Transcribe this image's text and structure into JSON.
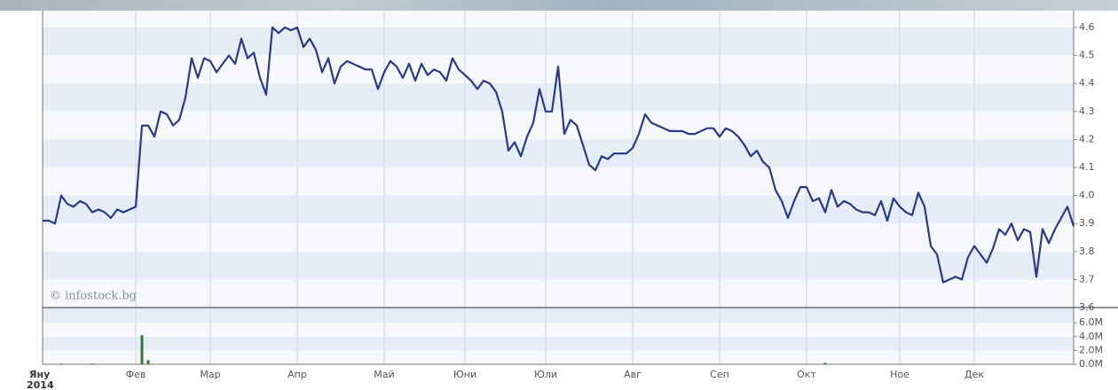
{
  "chart_data": [
    {
      "type": "line",
      "color": "#2a3a8a",
      "watermark": "© infostock.bg",
      "year_label": "2014",
      "categories": [
        "Яну",
        null,
        null,
        null,
        null,
        null,
        null,
        null,
        null,
        null,
        null,
        null,
        null,
        null,
        null,
        "Фев",
        null,
        null,
        null,
        null,
        null,
        null,
        null,
        null,
        null,
        null,
        null,
        "Мар",
        null,
        null,
        null,
        null,
        null,
        null,
        null,
        null,
        null,
        null,
        null,
        null,
        null,
        "Апр",
        null,
        null,
        null,
        null,
        null,
        null,
        null,
        null,
        null,
        null,
        null,
        null,
        null,
        "Май",
        null,
        null,
        null,
        null,
        null,
        null,
        null,
        null,
        null,
        null,
        null,
        null,
        "Юни",
        null,
        null,
        null,
        null,
        null,
        null,
        null,
        null,
        null,
        null,
        null,
        null,
        "Юли",
        null,
        null,
        null,
        null,
        null,
        null,
        null,
        null,
        null,
        null,
        null,
        null,
        null,
        "Авг",
        null,
        null,
        null,
        null,
        null,
        null,
        null,
        null,
        null,
        null,
        null,
        null,
        null,
        "Сеп",
        null,
        null,
        null,
        null,
        null,
        null,
        null,
        null,
        null,
        null,
        null,
        null,
        null,
        "Окт",
        null,
        null,
        null,
        null,
        null,
        null,
        null,
        null,
        null,
        null,
        null,
        null,
        null,
        null,
        "Ное",
        null,
        null,
        null,
        null,
        null,
        null,
        null,
        null,
        null,
        null,
        null,
        "Дек",
        null,
        null,
        null,
        null,
        null,
        null,
        null,
        null,
        null,
        null,
        null,
        null,
        null,
        null,
        null,
        null
      ],
      "values": [
        3.91,
        3.91,
        3.9,
        4.0,
        3.97,
        3.96,
        3.98,
        3.97,
        3.94,
        3.95,
        3.94,
        3.92,
        3.95,
        3.94,
        3.95,
        3.96,
        4.25,
        4.25,
        4.21,
        4.3,
        4.29,
        4.25,
        4.27,
        4.35,
        4.49,
        4.42,
        4.49,
        4.48,
        4.44,
        4.47,
        4.5,
        4.47,
        4.56,
        4.49,
        4.51,
        4.42,
        4.36,
        4.6,
        4.58,
        4.6,
        4.59,
        4.6,
        4.53,
        4.56,
        4.52,
        4.44,
        4.49,
        4.4,
        4.46,
        4.48,
        4.47,
        4.46,
        4.45,
        4.45,
        4.38,
        4.44,
        4.48,
        4.46,
        4.42,
        4.47,
        4.41,
        4.47,
        4.43,
        4.45,
        4.44,
        4.41,
        4.49,
        4.45,
        4.43,
        4.41,
        4.38,
        4.41,
        4.4,
        4.37,
        4.3,
        4.16,
        4.19,
        4.14,
        4.21,
        4.26,
        4.38,
        4.3,
        4.3,
        4.46,
        4.22,
        4.27,
        4.25,
        4.18,
        4.11,
        4.09,
        4.14,
        4.13,
        4.15,
        4.15,
        4.15,
        4.17,
        4.22,
        4.29,
        4.26,
        4.25,
        4.24,
        4.23,
        4.23,
        4.23,
        4.22,
        4.22,
        4.23,
        4.24,
        4.24,
        4.21,
        4.24,
        4.23,
        4.21,
        4.18,
        4.14,
        4.16,
        4.12,
        4.1,
        4.02,
        3.98,
        3.92,
        3.98,
        4.03,
        4.03,
        3.98,
        3.99,
        3.94,
        4.02,
        3.96,
        3.98,
        3.97,
        3.95,
        3.94,
        3.94,
        3.93,
        3.98,
        3.91,
        3.99,
        3.96,
        3.94,
        3.93,
        4.01,
        3.96,
        3.82,
        3.79,
        3.69,
        3.7,
        3.71,
        3.7,
        3.78,
        3.82,
        3.79,
        3.76,
        3.81,
        3.88,
        3.86,
        3.9,
        3.84,
        3.88,
        3.87,
        3.71,
        3.88,
        3.83,
        3.88,
        3.92,
        3.96,
        3.89
      ],
      "ylim": [
        3.6,
        4.66
      ],
      "yticks": [
        3.6,
        3.7,
        3.8,
        3.9,
        {
          "value": 4,
          "label": "4.0"
        },
        4.1,
        4.2,
        4.3,
        4.4,
        4.5,
        4.6
      ],
      "grid": true
    },
    {
      "type": "bar",
      "color": "#2e7d32",
      "values": [
        0,
        0,
        0,
        0.1,
        0,
        0,
        0,
        0,
        0.1,
        0,
        0,
        0,
        0,
        0,
        0,
        0,
        4.2,
        0.6,
        0,
        0,
        0,
        0,
        0,
        0,
        0,
        0,
        0,
        0,
        0,
        0,
        0,
        0,
        0,
        0,
        0,
        0,
        0,
        0,
        0,
        0,
        0,
        0,
        0,
        0,
        0,
        0,
        0,
        0,
        0,
        0,
        0,
        0,
        0,
        0,
        0,
        0,
        0,
        0,
        0,
        0,
        0,
        0,
        0,
        0,
        0,
        0,
        0,
        0,
        0,
        0,
        0,
        0,
        0,
        0,
        0,
        0,
        0,
        0,
        0,
        0,
        0,
        0,
        0,
        0,
        0,
        0,
        0,
        0,
        0,
        0,
        0,
        0,
        0,
        0,
        0,
        0,
        0,
        0,
        0,
        0,
        0,
        0,
        0,
        0,
        0,
        0,
        0,
        0,
        0,
        0,
        0,
        0,
        0,
        0,
        0,
        0,
        0,
        0,
        0,
        0,
        0,
        0,
        0,
        0,
        0,
        0,
        0.2,
        0,
        0,
        0,
        0,
        0,
        0,
        0,
        0,
        0,
        0,
        0,
        0,
        0,
        0,
        0,
        0,
        0,
        0,
        0,
        0,
        0,
        0,
        0,
        0,
        0,
        0,
        0,
        0,
        0,
        0,
        0,
        0,
        0,
        0,
        0,
        0,
        0,
        0,
        0,
        0
      ],
      "ylim": [
        0,
        8.2
      ],
      "yticks": [
        {
          "value": 0,
          "label": "0.0M"
        },
        {
          "value": 2,
          "label": "2.0M"
        },
        {
          "value": 4,
          "label": "4.0M"
        },
        {
          "value": 6,
          "label": "6.0M"
        }
      ]
    }
  ]
}
